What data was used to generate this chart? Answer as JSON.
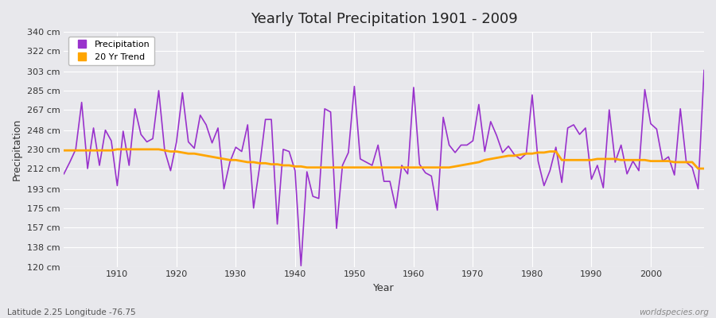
{
  "title": "Yearly Total Precipitation 1901 - 2009",
  "xlabel": "Year",
  "ylabel": "Precipitation",
  "subtitle": "Latitude 2.25 Longitude -76.75",
  "watermark": "worldspecies.org",
  "ylim": [
    120,
    340
  ],
  "yticks": [
    120,
    138,
    157,
    175,
    193,
    212,
    230,
    248,
    267,
    285,
    303,
    322,
    340
  ],
  "ytick_labels": [
    "120 cm",
    "138 cm",
    "157 cm",
    "175 cm",
    "193 cm",
    "212 cm",
    "230 cm",
    "248 cm",
    "267 cm",
    "285 cm",
    "303 cm",
    "322 cm",
    "340 cm"
  ],
  "xlim": [
    1901,
    2009
  ],
  "xticks": [
    1910,
    1920,
    1930,
    1940,
    1950,
    1960,
    1970,
    1980,
    1990,
    2000
  ],
  "precip_color": "#9932CC",
  "trend_color": "#FFA500",
  "bg_color": "#E8E8EC",
  "grid_color": "#FFFFFF",
  "years": [
    1901,
    1902,
    1903,
    1904,
    1905,
    1906,
    1907,
    1908,
    1909,
    1910,
    1911,
    1912,
    1913,
    1914,
    1915,
    1916,
    1917,
    1918,
    1919,
    1920,
    1921,
    1922,
    1923,
    1924,
    1925,
    1926,
    1927,
    1928,
    1929,
    1930,
    1931,
    1932,
    1933,
    1934,
    1935,
    1936,
    1937,
    1938,
    1939,
    1940,
    1941,
    1942,
    1943,
    1944,
    1945,
    1946,
    1947,
    1948,
    1949,
    1950,
    1951,
    1952,
    1953,
    1954,
    1955,
    1956,
    1957,
    1958,
    1959,
    1960,
    1961,
    1962,
    1963,
    1964,
    1965,
    1966,
    1967,
    1968,
    1969,
    1970,
    1971,
    1972,
    1973,
    1974,
    1975,
    1976,
    1977,
    1978,
    1979,
    1980,
    1981,
    1982,
    1983,
    1984,
    1985,
    1986,
    1987,
    1988,
    1989,
    1990,
    1991,
    1992,
    1993,
    1994,
    1995,
    1996,
    1997,
    1998,
    1999,
    2000,
    2001,
    2002,
    2003,
    2004,
    2005,
    2006,
    2007,
    2008,
    2009
  ],
  "precip": [
    207,
    218,
    230,
    274,
    212,
    250,
    215,
    248,
    238,
    196,
    247,
    215,
    268,
    244,
    237,
    240,
    285,
    229,
    210,
    237,
    283,
    237,
    231,
    262,
    253,
    236,
    250,
    193,
    218,
    232,
    228,
    253,
    175,
    213,
    258,
    258,
    160,
    230,
    228,
    210,
    121,
    209,
    186,
    184,
    268,
    265,
    156,
    215,
    227,
    289,
    221,
    218,
    215,
    234,
    200,
    200,
    175,
    215,
    207,
    288,
    216,
    208,
    205,
    173,
    260,
    234,
    227,
    234,
    234,
    238,
    272,
    228,
    256,
    243,
    227,
    233,
    225,
    221,
    226,
    281,
    219,
    196,
    210,
    232,
    199,
    250,
    253,
    244,
    250,
    202,
    215,
    194,
    267,
    218,
    234,
    207,
    219,
    210,
    286,
    254,
    249,
    219,
    223,
    206,
    268,
    218,
    213,
    193,
    304
  ],
  "trend": [
    229,
    229,
    229,
    229,
    229,
    229,
    229,
    229,
    229,
    230,
    230,
    230,
    230,
    230,
    230,
    230,
    230,
    229,
    228,
    228,
    227,
    226,
    226,
    225,
    224,
    223,
    222,
    221,
    220,
    220,
    219,
    218,
    218,
    217,
    217,
    216,
    216,
    215,
    215,
    214,
    214,
    213,
    213,
    213,
    213,
    213,
    213,
    213,
    213,
    213,
    213,
    213,
    213,
    213,
    213,
    213,
    213,
    213,
    213,
    213,
    213,
    213,
    213,
    213,
    213,
    213,
    214,
    215,
    216,
    217,
    218,
    220,
    221,
    222,
    223,
    224,
    224,
    225,
    226,
    226,
    227,
    227,
    228,
    228,
    220,
    220,
    220,
    220,
    220,
    220,
    221,
    221,
    221,
    221,
    220,
    220,
    220,
    220,
    220,
    219,
    219,
    219,
    219,
    218,
    218,
    218,
    218,
    212,
    212
  ]
}
